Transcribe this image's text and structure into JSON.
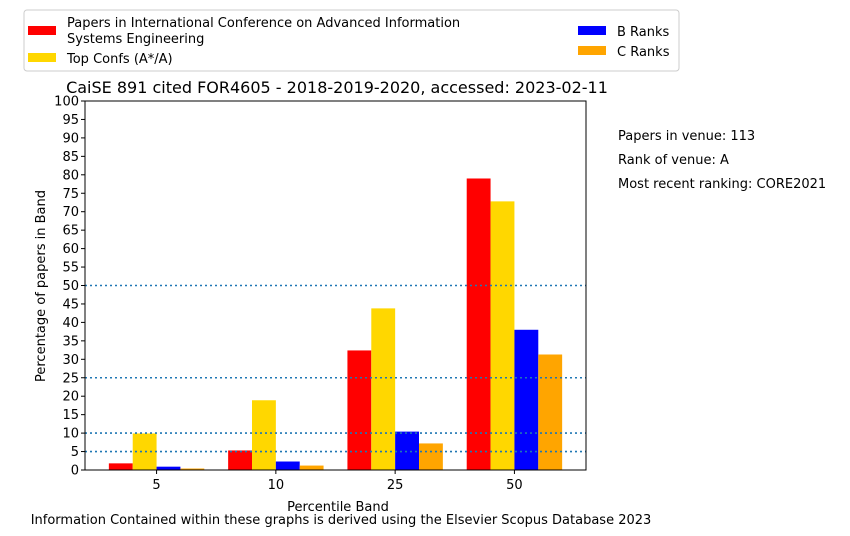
{
  "chart_data": {
    "type": "bar",
    "title": "CaiSE 891 cited FOR4605 - 2018-2019-2020, accessed: 2023-02-11",
    "xlabel": "Percentile Band",
    "ylabel": "Percentage of papers in Band",
    "categories": [
      "5",
      "10",
      "25",
      "50"
    ],
    "ylim": [
      0,
      100
    ],
    "yticks": [
      0,
      5,
      10,
      15,
      20,
      25,
      30,
      35,
      40,
      45,
      50,
      55,
      60,
      65,
      70,
      75,
      80,
      85,
      90,
      95,
      100
    ],
    "reference_lines": [
      5,
      10,
      25,
      50
    ],
    "legend_position": "top-left, outside plot",
    "series": [
      {
        "name": "Papers in International Conference on Advanced Information Systems Engineering",
        "color": "#ff0000",
        "values": [
          1.8,
          5.3,
          32.4,
          79.0
        ]
      },
      {
        "name": "Top Confs (A*/A)",
        "color": "#ffd700",
        "values": [
          9.9,
          18.9,
          43.8,
          72.8
        ]
      },
      {
        "name": "B Ranks",
        "color": "#0000ff",
        "values": [
          0.9,
          2.3,
          10.4,
          38.0
        ]
      },
      {
        "name": "C Ranks",
        "color": "#ffa500",
        "values": [
          0.4,
          1.2,
          7.2,
          31.3
        ]
      }
    ],
    "annotations": [
      "Papers in venue: 113",
      "Rank of venue: A",
      "Most recent ranking: CORE2021"
    ]
  },
  "footer": "Information Contained within these graphs is derived using the Elsevier Scopus Database 2023",
  "colors": {
    "reference_line": "#1f77b4"
  }
}
